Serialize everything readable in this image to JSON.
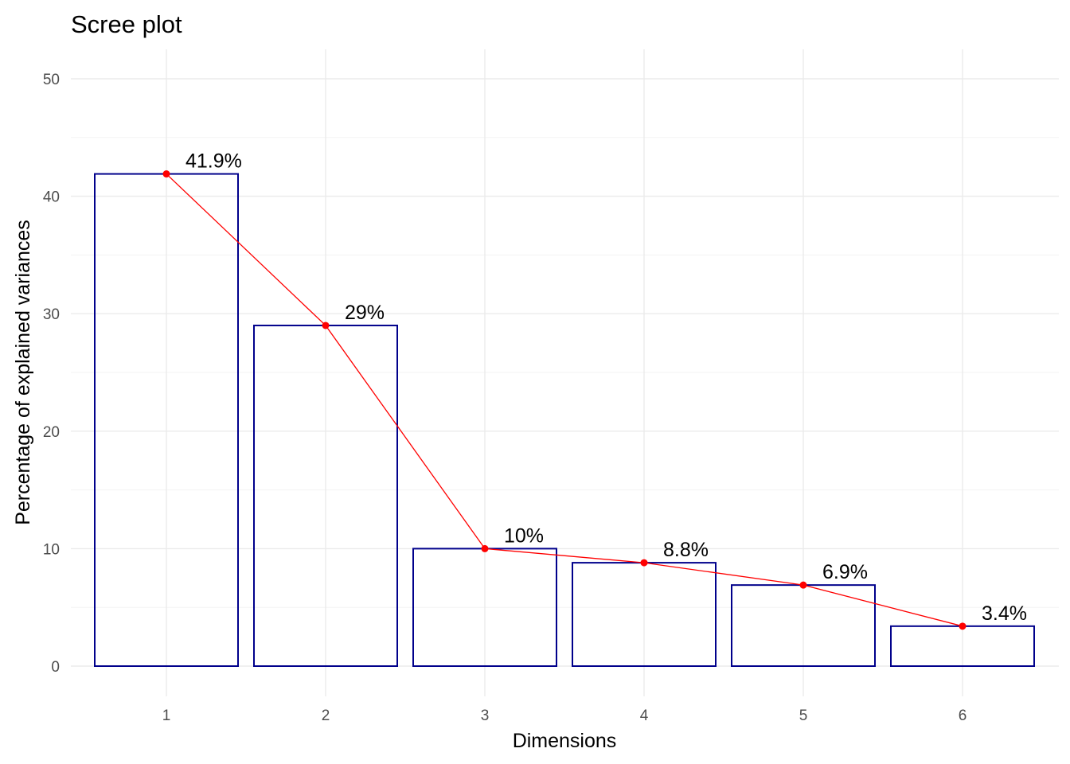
{
  "chart_data": {
    "type": "bar",
    "title": "Scree plot",
    "xlabel": "Dimensions",
    "ylabel": "Percentage of explained variances",
    "categories": [
      "1",
      "2",
      "3",
      "4",
      "5",
      "6"
    ],
    "values": [
      41.9,
      29.0,
      10.0,
      8.8,
      6.9,
      3.4
    ],
    "labels": [
      "41.9%",
      "29%",
      "10%",
      "8.8%",
      "6.9%",
      "3.4%"
    ],
    "ylim": [
      0,
      50
    ],
    "yticks": [
      0,
      10,
      20,
      30,
      40,
      50
    ],
    "grid": true,
    "legend": "none",
    "overlay": "line",
    "colors": {
      "bar_outline": "#00008b",
      "bar_fill": "none",
      "line": "#ff0000",
      "points": "#ff0000"
    }
  }
}
